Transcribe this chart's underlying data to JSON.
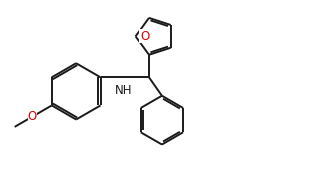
{
  "bg_color": "#ffffff",
  "line_color": "#1a1a1a",
  "oxygen_color": "#e00000",
  "nitrogen_color": "#1a1a1a",
  "line_width": 1.4,
  "font_size": 8.5,
  "xlim": [
    0,
    10
  ],
  "ylim": [
    0,
    6
  ],
  "figsize": [
    3.18,
    1.89
  ],
  "dpi": 100
}
